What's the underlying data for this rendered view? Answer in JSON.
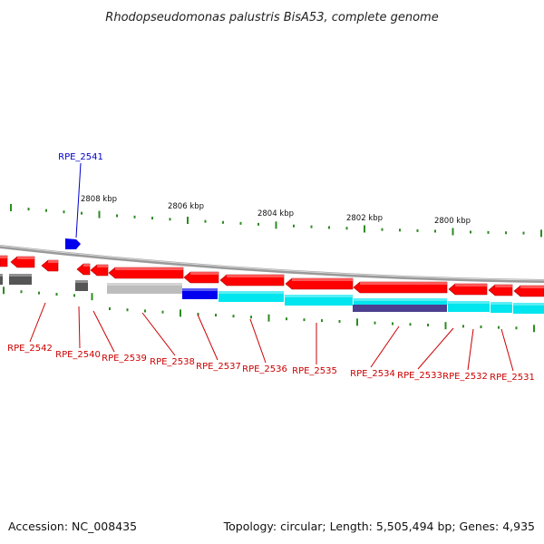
{
  "title": "Rhodopseudomonas palustris BisA53, complete genome",
  "footer": {
    "accession": "Accession: NC_008435",
    "summary": "Topology: circular; Length: 5,505,494 bp; Genes: 4,935"
  },
  "colors": {
    "forward_gene": "#ff0000",
    "reverse_gene": "#ff0000",
    "highlight_gene": "#0000ee",
    "cds_cyan": "#00e5ee",
    "cds_gray": "#bdbdbd",
    "rna_dark": "#555555",
    "tick_green": "#2e8b22",
    "backbone": "#9a9a9a",
    "label_red": "#cc0000",
    "label_blue": "#0000cc"
  },
  "scale": {
    "unit": "kbp",
    "labels": [
      "2808 kbp",
      "2806 kbp",
      "2804 kbp",
      "2802 kbp",
      "2800 kbp"
    ]
  },
  "genes": [
    {
      "id": "RPE_2541",
      "label": "RPE_2541",
      "color_key": "label_blue"
    },
    {
      "id": "RPE_2542",
      "label": "RPE_2542",
      "color_key": "label_red"
    },
    {
      "id": "RPE_2540",
      "label": "RPE_2540",
      "color_key": "label_red"
    },
    {
      "id": "RPE_2539",
      "label": "RPE_2539",
      "color_key": "label_red"
    },
    {
      "id": "RPE_2538",
      "label": "RPE_2538",
      "color_key": "label_red"
    },
    {
      "id": "RPE_2537",
      "label": "RPE_2537",
      "color_key": "label_red"
    },
    {
      "id": "RPE_2536",
      "label": "RPE_2536",
      "color_key": "label_red"
    },
    {
      "id": "RPE_2535",
      "label": "RPE_2535",
      "color_key": "label_red"
    },
    {
      "id": "RPE_2534",
      "label": "RPE_2534",
      "color_key": "label_red"
    },
    {
      "id": "RPE_2533",
      "label": "RPE_2533",
      "color_key": "label_red"
    },
    {
      "id": "RPE_2532",
      "label": "RPE_2532",
      "color_key": "label_red"
    },
    {
      "id": "RPE_2531",
      "label": "RPE_2531",
      "color_key": "label_red"
    }
  ]
}
